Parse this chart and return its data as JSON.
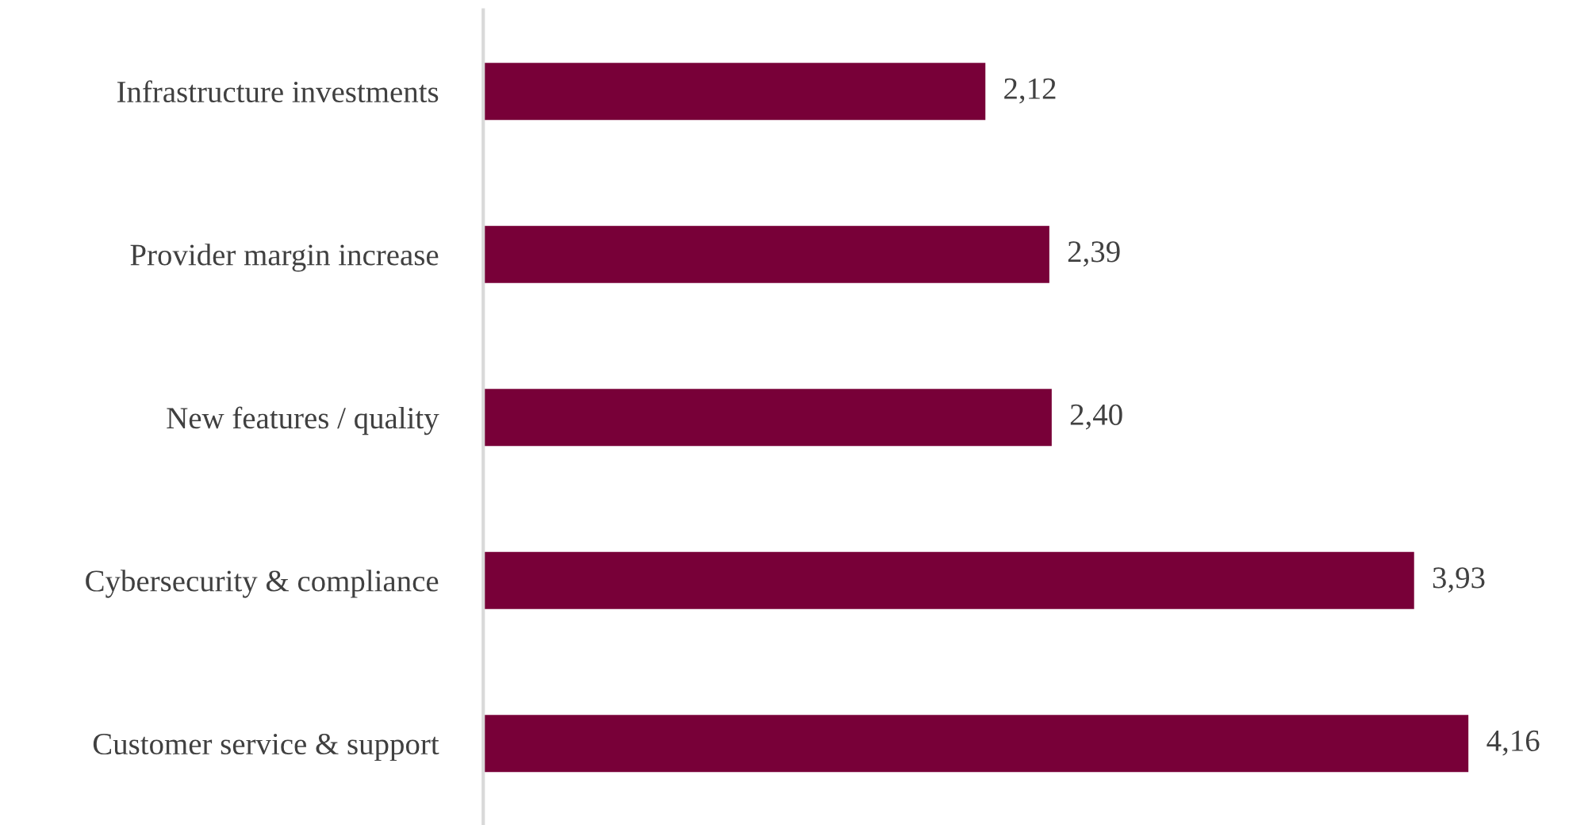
{
  "chart_data": {
    "type": "bar",
    "orientation": "horizontal",
    "categories": [
      "Infrastructure investments",
      "Provider margin increase",
      "New features / quality",
      "Cybersecurity & compliance",
      "Customer service & support"
    ],
    "values": [
      2.12,
      2.39,
      2.4,
      3.93,
      4.16
    ],
    "value_labels": [
      "2,12",
      "2,39",
      "2,40",
      "3,93",
      "4,16"
    ],
    "color": "#780038",
    "grid": false,
    "legend": false
  }
}
